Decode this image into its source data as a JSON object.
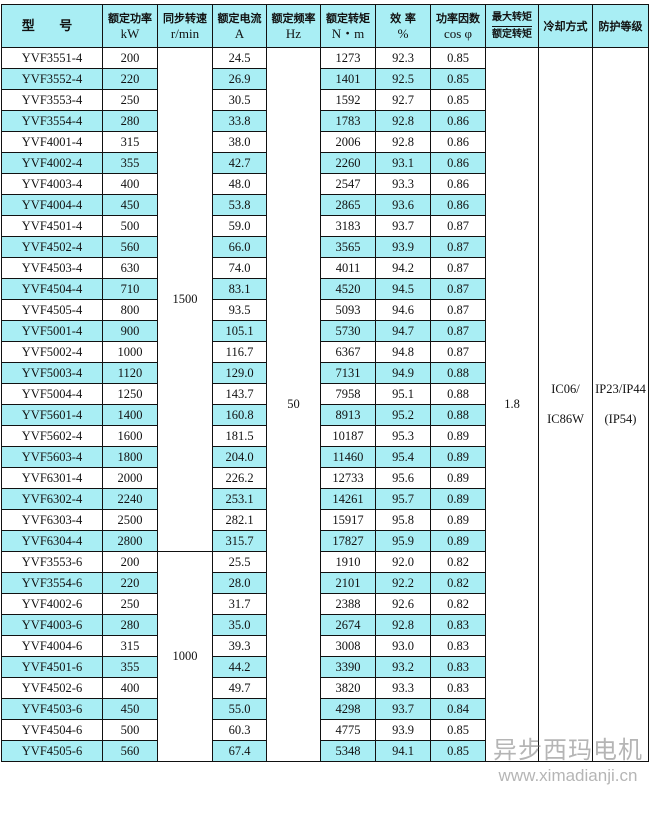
{
  "headers": {
    "model": "型 号",
    "power": "额定功率",
    "power_unit": "kW",
    "speed": "同步转速",
    "speed_unit": "r/min",
    "current": "额定电流",
    "current_unit": "A",
    "freq": "额定频率",
    "freq_unit": "Hz",
    "torque": "额定转矩",
    "torque_unit": "N・m",
    "eff": "效 率",
    "eff_unit": "%",
    "pf": "功率因数",
    "pf_unit": "cos φ",
    "maxtorque_top": "最大转矩",
    "maxtorque_bottom": "额定转矩",
    "cooling": "冷却方式",
    "protection": "防护等级"
  },
  "merged": {
    "speed_4pole": "1500",
    "speed_6pole": "1000",
    "freq": "50",
    "max_torque_ratio": "1.8",
    "cooling_1": "IC06/",
    "cooling_2": "IC86W",
    "protection_1": "IP23/IP44",
    "protection_2": "(IP54)"
  },
  "rows": [
    [
      "YVF3551-4",
      "200",
      "24.5",
      "1273",
      "92.3",
      "0.85"
    ],
    [
      "YVF3552-4",
      "220",
      "26.9",
      "1401",
      "92.5",
      "0.85"
    ],
    [
      "YVF3553-4",
      "250",
      "30.5",
      "1592",
      "92.7",
      "0.85"
    ],
    [
      "YVF3554-4",
      "280",
      "33.8",
      "1783",
      "92.8",
      "0.86"
    ],
    [
      "YVF4001-4",
      "315",
      "38.0",
      "2006",
      "92.8",
      "0.86"
    ],
    [
      "YVF4002-4",
      "355",
      "42.7",
      "2260",
      "93.1",
      "0.86"
    ],
    [
      "YVF4003-4",
      "400",
      "48.0",
      "2547",
      "93.3",
      "0.86"
    ],
    [
      "YVF4004-4",
      "450",
      "53.8",
      "2865",
      "93.6",
      "0.86"
    ],
    [
      "YVF4501-4",
      "500",
      "59.0",
      "3183",
      "93.7",
      "0.87"
    ],
    [
      "YVF4502-4",
      "560",
      "66.0",
      "3565",
      "93.9",
      "0.87"
    ],
    [
      "YVF4503-4",
      "630",
      "74.0",
      "4011",
      "94.2",
      "0.87"
    ],
    [
      "YVF4504-4",
      "710",
      "83.1",
      "4520",
      "94.5",
      "0.87"
    ],
    [
      "YVF4505-4",
      "800",
      "93.5",
      "5093",
      "94.6",
      "0.87"
    ],
    [
      "YVF5001-4",
      "900",
      "105.1",
      "5730",
      "94.7",
      "0.87"
    ],
    [
      "YVF5002-4",
      "1000",
      "116.7",
      "6367",
      "94.8",
      "0.87"
    ],
    [
      "YVF5003-4",
      "1120",
      "129.0",
      "7131",
      "94.9",
      "0.88"
    ],
    [
      "YVF5004-4",
      "1250",
      "143.7",
      "7958",
      "95.1",
      "0.88"
    ],
    [
      "YVF5601-4",
      "1400",
      "160.8",
      "8913",
      "95.2",
      "0.88"
    ],
    [
      "YVF5602-4",
      "1600",
      "181.5",
      "10187",
      "95.3",
      "0.89"
    ],
    [
      "YVF5603-4",
      "1800",
      "204.0",
      "11460",
      "95.4",
      "0.89"
    ],
    [
      "YVF6301-4",
      "2000",
      "226.2",
      "12733",
      "95.6",
      "0.89"
    ],
    [
      "YVF6302-4",
      "2240",
      "253.1",
      "14261",
      "95.7",
      "0.89"
    ],
    [
      "YVF6303-4",
      "2500",
      "282.1",
      "15917",
      "95.8",
      "0.89"
    ],
    [
      "YVF6304-4",
      "2800",
      "315.7",
      "17827",
      "95.9",
      "0.89"
    ],
    [
      "YVF3553-6",
      "200",
      "25.5",
      "1910",
      "92.0",
      "0.82"
    ],
    [
      "YVF3554-6",
      "220",
      "28.0",
      "2101",
      "92.2",
      "0.82"
    ],
    [
      "YVF4002-6",
      "250",
      "31.7",
      "2388",
      "92.6",
      "0.82"
    ],
    [
      "YVF4003-6",
      "280",
      "35.0",
      "2674",
      "92.8",
      "0.83"
    ],
    [
      "YVF4004-6",
      "315",
      "39.3",
      "3008",
      "93.0",
      "0.83"
    ],
    [
      "YVF4501-6",
      "355",
      "44.2",
      "3390",
      "93.2",
      "0.83"
    ],
    [
      "YVF4502-6",
      "400",
      "49.7",
      "3820",
      "93.3",
      "0.83"
    ],
    [
      "YVF4503-6",
      "450",
      "55.0",
      "4298",
      "93.7",
      "0.84"
    ],
    [
      "YVF4504-6",
      "500",
      "60.3",
      "4775",
      "93.9",
      "0.85"
    ],
    [
      "YVF4505-6",
      "560",
      "67.4",
      "5348",
      "94.1",
      "0.85"
    ]
  ],
  "watermark": {
    "line1": "异步西玛电机",
    "line2": "www.ximadianji.cn"
  },
  "colors": {
    "stripe": "#a9eef4",
    "border": "#111111"
  }
}
